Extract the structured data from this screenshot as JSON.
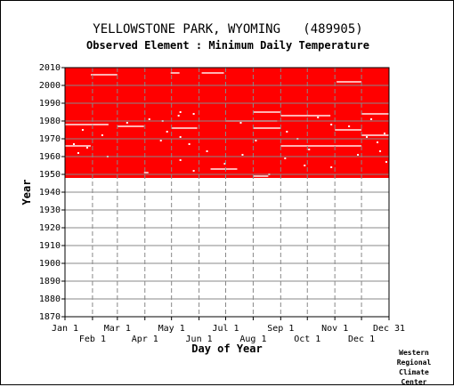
{
  "chart_data": {
    "type": "heatmap",
    "title": "YELLOWSTONE PARK, WYOMING   (489905)",
    "subtitle": "Observed Element : Minimum Daily Temperature",
    "xlabel": "Day of Year",
    "ylabel": "Year",
    "ylim": [
      1870,
      2010
    ],
    "yticks": [
      1870,
      1880,
      1890,
      1900,
      1910,
      1920,
      1930,
      1940,
      1950,
      1960,
      1970,
      1980,
      1990,
      2000,
      2010
    ],
    "xlim": [
      1,
      366
    ],
    "xticks_upper": [
      {
        "label": "Jan 1",
        "day": 1
      },
      {
        "label": "Mar 1",
        "day": 60
      },
      {
        "label": "May 1",
        "day": 121
      },
      {
        "label": "Jul 1",
        "day": 182
      },
      {
        "label": "Sep 1",
        "day": 244
      },
      {
        "label": "Nov 1",
        "day": 305
      },
      {
        "label": "Dec 31",
        "day": 366
      }
    ],
    "xticks_lower": [
      {
        "label": "Feb 1",
        "day": 32
      },
      {
        "label": "Apr 1",
        "day": 91
      },
      {
        "label": "Jun 1",
        "day": 152
      },
      {
        "label": "Aug 1",
        "day": 213
      },
      {
        "label": "Oct 1",
        "day": 274
      },
      {
        "label": "Dec 1",
        "day": 335
      }
    ],
    "observed_period": {
      "start_year": 1948,
      "end_year": 2010
    },
    "missing_segments": [
      {
        "year": 2006,
        "start_day": 30,
        "end_day": 60
      },
      {
        "year": 2007,
        "start_day": 120,
        "end_day": 130
      },
      {
        "year": 2007,
        "start_day": 155,
        "end_day": 180
      },
      {
        "year": 2002,
        "start_day": 307,
        "end_day": 335
      },
      {
        "year": 1985,
        "start_day": 213,
        "end_day": 244
      },
      {
        "year": 1983,
        "start_day": 244,
        "end_day": 300
      },
      {
        "year": 1984,
        "start_day": 335,
        "end_day": 366
      },
      {
        "year": 1980,
        "start_day": 182,
        "end_day": 240
      },
      {
        "year": 1978,
        "start_day": 1,
        "end_day": 50
      },
      {
        "year": 1977,
        "start_day": 60,
        "end_day": 90
      },
      {
        "year": 1976,
        "start_day": 121,
        "end_day": 150
      },
      {
        "year": 1976,
        "start_day": 213,
        "end_day": 244
      },
      {
        "year": 1975,
        "start_day": 305,
        "end_day": 335
      },
      {
        "year": 1972,
        "start_day": 335,
        "end_day": 366
      },
      {
        "year": 1966,
        "start_day": 1,
        "end_day": 30
      },
      {
        "year": 1966,
        "start_day": 244,
        "end_day": 335
      },
      {
        "year": 1953,
        "start_day": 165,
        "end_day": 195
      },
      {
        "year": 1951,
        "start_day": 90,
        "end_day": 95
      },
      {
        "year": 1949,
        "start_day": 213,
        "end_day": 230
      }
    ],
    "scattered_gaps": [
      {
        "year": 1985,
        "day": 130
      },
      {
        "year": 1984,
        "day": 145
      },
      {
        "year": 1983,
        "day": 128
      },
      {
        "year": 1981,
        "day": 95
      },
      {
        "year": 1980,
        "day": 110
      },
      {
        "year": 1979,
        "day": 70
      },
      {
        "year": 1978,
        "day": 300
      },
      {
        "year": 1977,
        "day": 320
      },
      {
        "year": 1975,
        "day": 20
      },
      {
        "year": 1974,
        "day": 115
      },
      {
        "year": 1973,
        "day": 360
      },
      {
        "year": 1972,
        "day": 42
      },
      {
        "year": 1971,
        "day": 130
      },
      {
        "year": 1970,
        "day": 262
      },
      {
        "year": 1969,
        "day": 108
      },
      {
        "year": 1968,
        "day": 352
      },
      {
        "year": 1967,
        "day": 140
      },
      {
        "year": 1965,
        "day": 25
      },
      {
        "year": 1964,
        "day": 275
      },
      {
        "year": 1963,
        "day": 355
      },
      {
        "year": 1962,
        "day": 15
      },
      {
        "year": 1961,
        "day": 200
      },
      {
        "year": 1960,
        "day": 48
      },
      {
        "year": 1958,
        "day": 130
      },
      {
        "year": 1957,
        "day": 362
      },
      {
        "year": 1956,
        "day": 180
      },
      {
        "year": 1955,
        "day": 270
      },
      {
        "year": 1954,
        "day": 300
      },
      {
        "year": 1952,
        "day": 145
      },
      {
        "year": 1950,
        "day": 230
      },
      {
        "year": 1982,
        "day": 285
      },
      {
        "year": 1981,
        "day": 345
      },
      {
        "year": 1979,
        "day": 198
      },
      {
        "year": 1974,
        "day": 250
      },
      {
        "year": 1971,
        "day": 340
      },
      {
        "year": 1969,
        "day": 215
      },
      {
        "year": 1967,
        "day": 10
      },
      {
        "year": 1963,
        "day": 160
      },
      {
        "year": 1961,
        "day": 330
      },
      {
        "year": 1959,
        "day": 248
      }
    ],
    "grid": true,
    "colors": {
      "observed": "#ff0000",
      "missing": "#ffffff",
      "grid": "#888888",
      "axis": "#000000"
    }
  },
  "credit": [
    "Western",
    "Regional",
    "Climate",
    "Center"
  ]
}
